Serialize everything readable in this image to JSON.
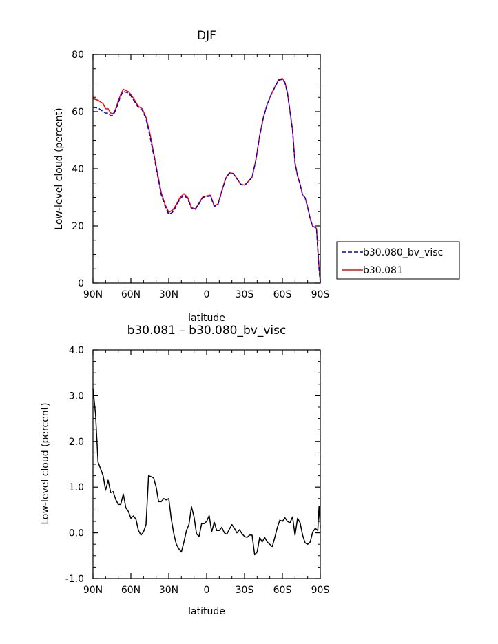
{
  "chart_data": [
    {
      "type": "line",
      "title": "DJF",
      "xlabel": "latitude",
      "ylabel": "Low-level cloud (percent)",
      "xlim": [
        90,
        -90
      ],
      "ylim": [
        0,
        80
      ],
      "x_ticks": [
        90,
        60,
        30,
        0,
        -30,
        -60,
        -90
      ],
      "x_tick_labels": [
        "90N",
        "60N",
        "30N",
        "0",
        "30S",
        "60S",
        "90S"
      ],
      "y_ticks": [
        0,
        20,
        40,
        60,
        80
      ],
      "y_tick_labels": [
        "0",
        "20",
        "40",
        "60",
        "80"
      ],
      "legend_position": "right-outside",
      "series": [
        {
          "name": "b30.080_bv_visc",
          "color": "#0000cc",
          "style": "dashed",
          "x": [
            90,
            86,
            82,
            80,
            78,
            76,
            74,
            72,
            70,
            68,
            66,
            64,
            62,
            60,
            57,
            54,
            51,
            48,
            45,
            42,
            39,
            36,
            33,
            30,
            27,
            24,
            21,
            18,
            15,
            12,
            9,
            6,
            3,
            0,
            -3,
            -6,
            -9,
            -12,
            -15,
            -18,
            -21,
            -24,
            -27,
            -30,
            -33,
            -36,
            -39,
            -42,
            -45,
            -48,
            -51,
            -54,
            -57,
            -60,
            -62,
            -64,
            -66,
            -68,
            -70,
            -72,
            -74,
            -76,
            -78,
            -80,
            -82,
            -84,
            -86,
            -87,
            -88,
            -89,
            -90
          ],
          "y": [
            61.5,
            61.3,
            60,
            59.5,
            59.5,
            58.5,
            58.8,
            60.5,
            63,
            65.5,
            67,
            66.8,
            66.5,
            65.5,
            63.5,
            61.3,
            60.5,
            57.5,
            51.5,
            45,
            38,
            31,
            27,
            24,
            24.8,
            27,
            29.5,
            30.8,
            29.5,
            26,
            25.8,
            27.8,
            30,
            30.3,
            30.5,
            26.8,
            27.5,
            32,
            36.5,
            38.5,
            38.3,
            36.5,
            34.5,
            34.2,
            35.5,
            37,
            43,
            51.5,
            58,
            62.5,
            65.8,
            68.5,
            71,
            71.3,
            70,
            66.5,
            60,
            53.5,
            42,
            37.5,
            34.5,
            30.8,
            29.8,
            26.5,
            22.5,
            19.8,
            19.5,
            19,
            12,
            5,
            0
          ]
        },
        {
          "name": "b30.081",
          "color": "#ff0000",
          "style": "solid",
          "x": [
            90,
            86,
            82,
            80,
            78,
            76,
            74,
            72,
            70,
            68,
            66,
            64,
            62,
            60,
            57,
            54,
            51,
            48,
            45,
            42,
            39,
            36,
            33,
            30,
            27,
            24,
            21,
            18,
            15,
            12,
            9,
            6,
            3,
            0,
            -3,
            -6,
            -9,
            -12,
            -15,
            -18,
            -21,
            -24,
            -27,
            -30,
            -33,
            -36,
            -39,
            -42,
            -45,
            -48,
            -51,
            -54,
            -57,
            -60,
            -62,
            -64,
            -66,
            -68,
            -70,
            -72,
            -74,
            -76,
            -78,
            -80,
            -82,
            -84,
            -86,
            -87,
            -88,
            -89,
            -90
          ],
          "y": [
            64.5,
            64,
            62.8,
            61,
            61,
            59.5,
            59.3,
            61,
            63.8,
            66,
            67.8,
            67.4,
            67,
            66,
            64,
            61.8,
            61,
            58,
            52.5,
            45.7,
            38.6,
            31.7,
            27.6,
            24.8,
            25.5,
            27.5,
            30,
            31.3,
            30,
            26.4,
            26,
            28,
            30.2,
            30.5,
            30.8,
            27,
            27.7,
            32.2,
            36.6,
            38.6,
            38.4,
            36.6,
            34.6,
            34.3,
            35.6,
            37.1,
            43.1,
            51.6,
            58.1,
            62.6,
            65.9,
            68.6,
            71.2,
            71.6,
            70.3,
            66.7,
            60.2,
            53.6,
            42.1,
            37.6,
            34.6,
            30.9,
            29.9,
            26.6,
            22.6,
            19.9,
            19.6,
            19.1,
            12.5,
            5.5,
            0.5
          ]
        }
      ]
    },
    {
      "type": "line",
      "title": "b30.081 – b30.080_bv_visc",
      "xlabel": "latitude",
      "ylabel": "Low-level cloud (percent)",
      "xlim": [
        90,
        -90
      ],
      "ylim": [
        -1,
        4
      ],
      "x_ticks": [
        90,
        60,
        30,
        0,
        -30,
        -60,
        -90
      ],
      "x_tick_labels": [
        "90N",
        "60N",
        "30N",
        "0",
        "30S",
        "60S",
        "90S"
      ],
      "y_ticks": [
        -1,
        0,
        1,
        2,
        3,
        4
      ],
      "y_tick_labels": [
        "-1.0",
        "0.0",
        "1.0",
        "2.0",
        "3.0",
        "4.0"
      ],
      "series": [
        {
          "color": "#000000",
          "style": "solid",
          "x": [
            90,
            88,
            86,
            84,
            82,
            80,
            78,
            76,
            74,
            72,
            70,
            68,
            66,
            64,
            62,
            60,
            58,
            56,
            54,
            52,
            50,
            48,
            46,
            44,
            42,
            40,
            38,
            36,
            34,
            32,
            30,
            28,
            26,
            24,
            22,
            20,
            18,
            16,
            14,
            12,
            10,
            8,
            6,
            4,
            2,
            0,
            -2,
            -4,
            -6,
            -8,
            -10,
            -12,
            -14,
            -16,
            -18,
            -20,
            -22,
            -24,
            -26,
            -28,
            -30,
            -32,
            -34,
            -36,
            -38,
            -40,
            -42,
            -44,
            -46,
            -48,
            -50,
            -52,
            -54,
            -56,
            -58,
            -60,
            -62,
            -64,
            -66,
            -68,
            -70,
            -72,
            -74,
            -76,
            -78,
            -80,
            -82,
            -84,
            -86,
            -88,
            -89,
            -90
          ],
          "y": [
            3.15,
            2.6,
            1.55,
            1.4,
            1.25,
            0.93,
            1.15,
            0.88,
            0.9,
            0.73,
            0.62,
            0.62,
            0.85,
            0.55,
            0.47,
            0.32,
            0.37,
            0.3,
            0.05,
            -0.05,
            0.02,
            0.18,
            1.25,
            1.23,
            1.2,
            1.0,
            0.68,
            0.68,
            0.75,
            0.72,
            0.75,
            0.3,
            -0.02,
            -0.25,
            -0.35,
            -0.42,
            -0.2,
            0.05,
            0.18,
            0.57,
            0.35,
            -0.02,
            -0.08,
            0.2,
            0.2,
            0.25,
            0.38,
            0.02,
            0.23,
            0.05,
            0.05,
            0.12,
            0.0,
            -0.03,
            0.08,
            0.18,
            0.1,
            0.0,
            0.07,
            -0.02,
            -0.08,
            -0.1,
            -0.05,
            -0.05,
            -0.48,
            -0.42,
            -0.1,
            -0.2,
            -0.1,
            -0.2,
            -0.25,
            -0.3,
            -0.1,
            0.12,
            0.28,
            0.25,
            0.33,
            0.25,
            0.22,
            0.35,
            -0.05,
            0.32,
            0.22,
            -0.05,
            -0.22,
            -0.25,
            -0.2,
            0.02,
            0.1,
            0.05,
            0.58,
            0.12
          ]
        }
      ]
    }
  ]
}
